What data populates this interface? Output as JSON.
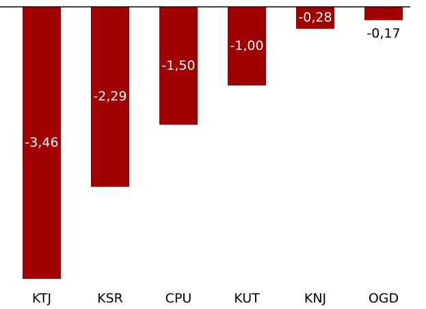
{
  "chart_data": {
    "type": "bar",
    "categories": [
      "KTJ",
      "KSR",
      "CPU",
      "KUT",
      "KNJ",
      "OGD"
    ],
    "values": [
      -3.46,
      -2.29,
      -1.5,
      -1.0,
      -0.28,
      -0.17
    ],
    "value_labels": [
      "-3,46",
      "-2,29",
      "-1,50",
      "-1,00",
      "-0,28",
      "-0,17"
    ],
    "color": "#a00000",
    "ylim": [
      -3.5,
      0
    ]
  }
}
